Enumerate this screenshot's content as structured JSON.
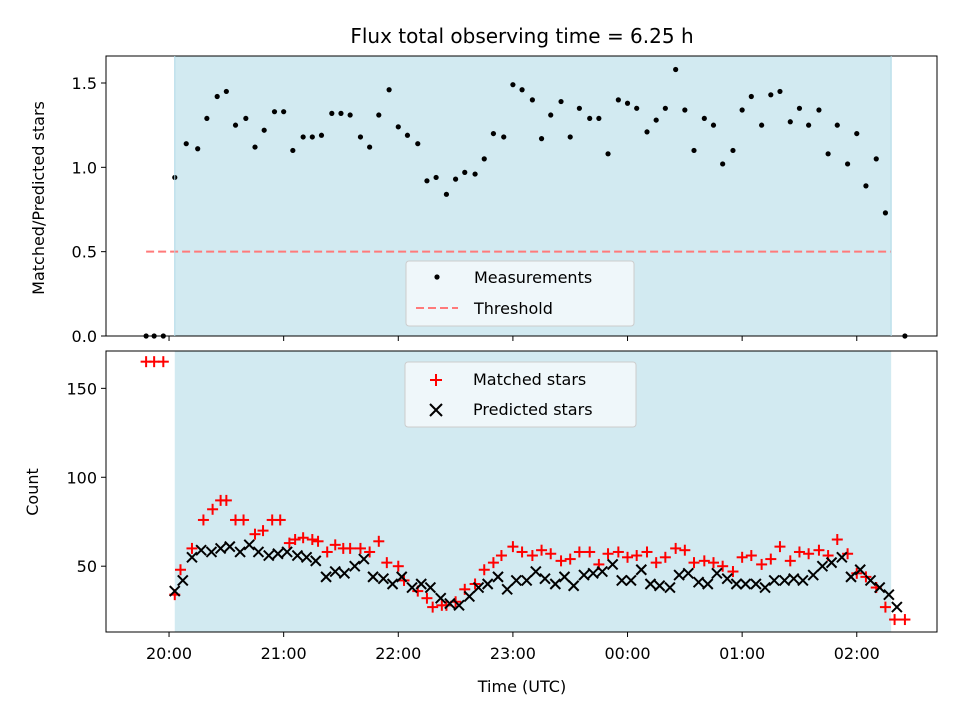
{
  "chart_data": [
    {
      "type": "scatter",
      "title": "Flux total observing time = 6.25 h",
      "ylabel": "Matched/Predicted stars",
      "ylim": [
        0,
        1.66
      ],
      "x_unit": "hours since 20:00 UTC",
      "yticks": [
        0.0,
        0.5,
        1.0,
        1.5
      ],
      "ytick_labels": [
        "0.0",
        "0.5",
        "1.0",
        "1.5"
      ],
      "shaded_interval": [
        0.05,
        6.3
      ],
      "shade_color": "#add8e6",
      "legend_position": "lower center",
      "series": [
        {
          "name": "Measurements",
          "kind": "scatter",
          "marker": "dot",
          "color": "#000000",
          "x": [
            -0.2,
            -0.13,
            -0.05,
            0.05,
            0.15,
            0.25,
            0.33,
            0.42,
            0.5,
            0.58,
            0.67,
            0.75,
            0.83,
            0.92,
            1.0,
            1.08,
            1.17,
            1.25,
            1.33,
            1.42,
            1.5,
            1.58,
            1.67,
            1.75,
            1.83,
            1.92,
            2.0,
            2.08,
            2.17,
            2.25,
            2.33,
            2.42,
            2.5,
            2.58,
            2.67,
            2.75,
            2.83,
            2.92,
            3.0,
            3.08,
            3.17,
            3.25,
            3.33,
            3.42,
            3.5,
            3.58,
            3.67,
            3.75,
            3.83,
            3.92,
            4.0,
            4.08,
            4.17,
            4.25,
            4.33,
            4.42,
            4.5,
            4.58,
            4.67,
            4.75,
            4.83,
            4.92,
            5.0,
            5.08,
            5.17,
            5.25,
            5.33,
            5.42,
            5.5,
            5.58,
            5.67,
            5.75,
            5.83,
            5.92,
            6.0,
            6.08,
            6.17,
            6.25,
            6.42
          ],
          "y": [
            0.0,
            0.0,
            0.0,
            0.94,
            1.14,
            1.11,
            1.29,
            1.42,
            1.45,
            1.25,
            1.29,
            1.12,
            1.22,
            1.33,
            1.33,
            1.1,
            1.18,
            1.18,
            1.19,
            1.32,
            1.32,
            1.31,
            1.18,
            1.12,
            1.31,
            1.46,
            1.24,
            1.19,
            1.14,
            0.92,
            0.94,
            0.84,
            0.93,
            0.97,
            0.96,
            1.05,
            1.2,
            1.18,
            1.49,
            1.46,
            1.4,
            1.17,
            1.31,
            1.39,
            1.18,
            1.35,
            1.29,
            1.29,
            1.08,
            1.4,
            1.38,
            1.35,
            1.21,
            1.28,
            1.35,
            1.58,
            1.34,
            1.1,
            1.29,
            1.25,
            1.02,
            1.1,
            1.34,
            1.42,
            1.25,
            1.43,
            1.45,
            1.27,
            1.35,
            1.25,
            1.34,
            1.08,
            1.25,
            1.02,
            1.2,
            0.89,
            1.05,
            0.73,
            0.0
          ]
        },
        {
          "name": "Threshold",
          "kind": "line",
          "style": "dashed",
          "color": "#ff7a7a",
          "x": [
            -0.2,
            6.3
          ],
          "y": [
            0.5,
            0.5
          ]
        }
      ]
    },
    {
      "type": "scatter",
      "xlabel": "Time (UTC)",
      "ylabel": "Count",
      "ylim": [
        13,
        171
      ],
      "xlim": [
        -0.55,
        6.7
      ],
      "x_unit": "hours since 20:00 UTC",
      "yticks": [
        50,
        100,
        150
      ],
      "ytick_labels": [
        "50",
        "100",
        "150"
      ],
      "xticks": [
        0,
        1,
        2,
        3,
        4,
        5,
        6
      ],
      "xtick_labels": [
        "20:00",
        "21:00",
        "22:00",
        "23:00",
        "00:00",
        "01:00",
        "02:00"
      ],
      "shaded_interval": [
        0.05,
        6.3
      ],
      "shade_color": "#add8e6",
      "legend_position": "upper center",
      "series": [
        {
          "name": "Matched stars",
          "kind": "scatter",
          "marker": "plus",
          "color": "#ff0000",
          "x": [
            -0.2,
            -0.13,
            -0.05,
            0.05,
            0.1,
            0.2,
            0.3,
            0.38,
            0.45,
            0.5,
            0.58,
            0.65,
            0.75,
            0.82,
            0.9,
            0.97,
            1.05,
            1.1,
            1.17,
            1.25,
            1.3,
            1.38,
            1.45,
            1.52,
            1.58,
            1.67,
            1.75,
            1.83,
            1.9,
            2.0,
            2.05,
            2.17,
            2.25,
            2.3,
            2.38,
            2.42,
            2.5,
            2.58,
            2.67,
            2.75,
            2.83,
            2.9,
            3.0,
            3.08,
            3.17,
            3.25,
            3.33,
            3.42,
            3.5,
            3.58,
            3.67,
            3.75,
            3.83,
            3.92,
            4.0,
            4.08,
            4.17,
            4.25,
            4.33,
            4.42,
            4.5,
            4.58,
            4.67,
            4.75,
            4.83,
            4.92,
            5.0,
            5.08,
            5.17,
            5.25,
            5.33,
            5.42,
            5.5,
            5.58,
            5.67,
            5.75,
            5.83,
            5.92,
            6.0,
            6.08,
            6.17,
            6.25,
            6.33,
            6.42
          ],
          "y": [
            165,
            165,
            165,
            34,
            48,
            60,
            76,
            82,
            87,
            87,
            76,
            76,
            68,
            70,
            76,
            76,
            63,
            65,
            66,
            65,
            64,
            58,
            62,
            60,
            60,
            60,
            58,
            64,
            52,
            50,
            42,
            36,
            32,
            27,
            28,
            28,
            30,
            37,
            40,
            48,
            52,
            56,
            61,
            58,
            56,
            59,
            57,
            53,
            54,
            58,
            58,
            51,
            57,
            58,
            55,
            56,
            58,
            52,
            55,
            60,
            59,
            52,
            53,
            52,
            50,
            47,
            55,
            56,
            51,
            54,
            61,
            53,
            58,
            57,
            59,
            56,
            65,
            57,
            46,
            44,
            38,
            27,
            20,
            20
          ]
        },
        {
          "name": "Predicted stars",
          "kind": "scatter",
          "marker": "x",
          "color": "#000000",
          "x": [
            0.05,
            0.12,
            0.2,
            0.28,
            0.37,
            0.45,
            0.53,
            0.62,
            0.7,
            0.78,
            0.87,
            0.95,
            1.03,
            1.12,
            1.2,
            1.28,
            1.37,
            1.45,
            1.53,
            1.62,
            1.7,
            1.78,
            1.87,
            1.95,
            2.03,
            2.12,
            2.2,
            2.28,
            2.37,
            2.45,
            2.53,
            2.62,
            2.7,
            2.78,
            2.87,
            2.95,
            3.03,
            3.12,
            3.2,
            3.28,
            3.37,
            3.45,
            3.53,
            3.62,
            3.7,
            3.78,
            3.87,
            3.95,
            4.03,
            4.12,
            4.2,
            4.28,
            4.37,
            4.45,
            4.53,
            4.62,
            4.7,
            4.78,
            4.87,
            4.95,
            5.03,
            5.12,
            5.2,
            5.28,
            5.37,
            5.45,
            5.53,
            5.62,
            5.7,
            5.78,
            5.87,
            5.95,
            6.03,
            6.12,
            6.2,
            6.28,
            6.35
          ],
          "y": [
            36,
            42,
            55,
            59,
            58,
            60,
            61,
            58,
            62,
            58,
            56,
            57,
            58,
            56,
            55,
            53,
            44,
            47,
            46,
            50,
            54,
            44,
            43,
            40,
            44,
            38,
            40,
            38,
            32,
            29,
            28,
            33,
            38,
            40,
            44,
            37,
            42,
            42,
            47,
            43,
            40,
            44,
            39,
            45,
            46,
            47,
            51,
            42,
            42,
            48,
            40,
            39,
            38,
            45,
            46,
            41,
            40,
            46,
            43,
            40,
            40,
            40,
            38,
            42,
            42,
            43,
            42,
            45,
            50,
            52,
            55,
            44,
            48,
            42,
            38,
            34,
            27
          ]
        }
      ]
    }
  ]
}
